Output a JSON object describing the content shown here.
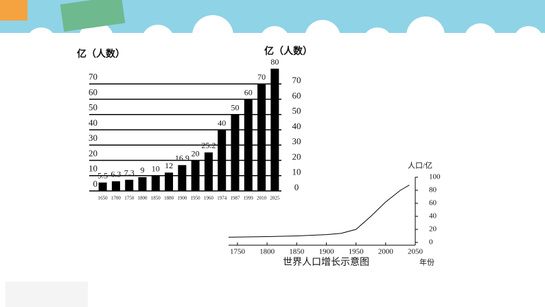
{
  "chart_data": [
    {
      "type": "bar",
      "ylabel": "亿（人数）",
      "categories": [
        "1650",
        "1700",
        "1750",
        "1800",
        "1850",
        "1880",
        "1900",
        "1950",
        "1960",
        "1974",
        "1987",
        "1999",
        "2010",
        "2025"
      ],
      "values": [
        5.5,
        6.3,
        7.3,
        9,
        10,
        12,
        16.9,
        20,
        25.2,
        40,
        50,
        60,
        70,
        80
      ],
      "color": "#000000",
      "ylim": [
        0,
        80
      ],
      "yticks": [
        0,
        10,
        20,
        30,
        40,
        50,
        60,
        70
      ],
      "grid": true
    },
    {
      "type": "line",
      "title": "世界人口增长示意图",
      "xlabel": "年份",
      "ylabel": "人口/亿",
      "x": [
        1735,
        1800,
        1850,
        1900,
        1925,
        1950,
        1975,
        2000,
        2025,
        2040
      ],
      "values": [
        8,
        9,
        10,
        12,
        14,
        20,
        40,
        62,
        80,
        88
      ],
      "color": "#000000",
      "xlim": [
        1735,
        2050
      ],
      "xticks": [
        1750,
        1800,
        1850,
        1900,
        1950,
        2000,
        2050
      ],
      "ylim": [
        0,
        100
      ],
      "yticks": [
        0,
        20,
        40,
        60,
        80,
        100
      ]
    }
  ]
}
